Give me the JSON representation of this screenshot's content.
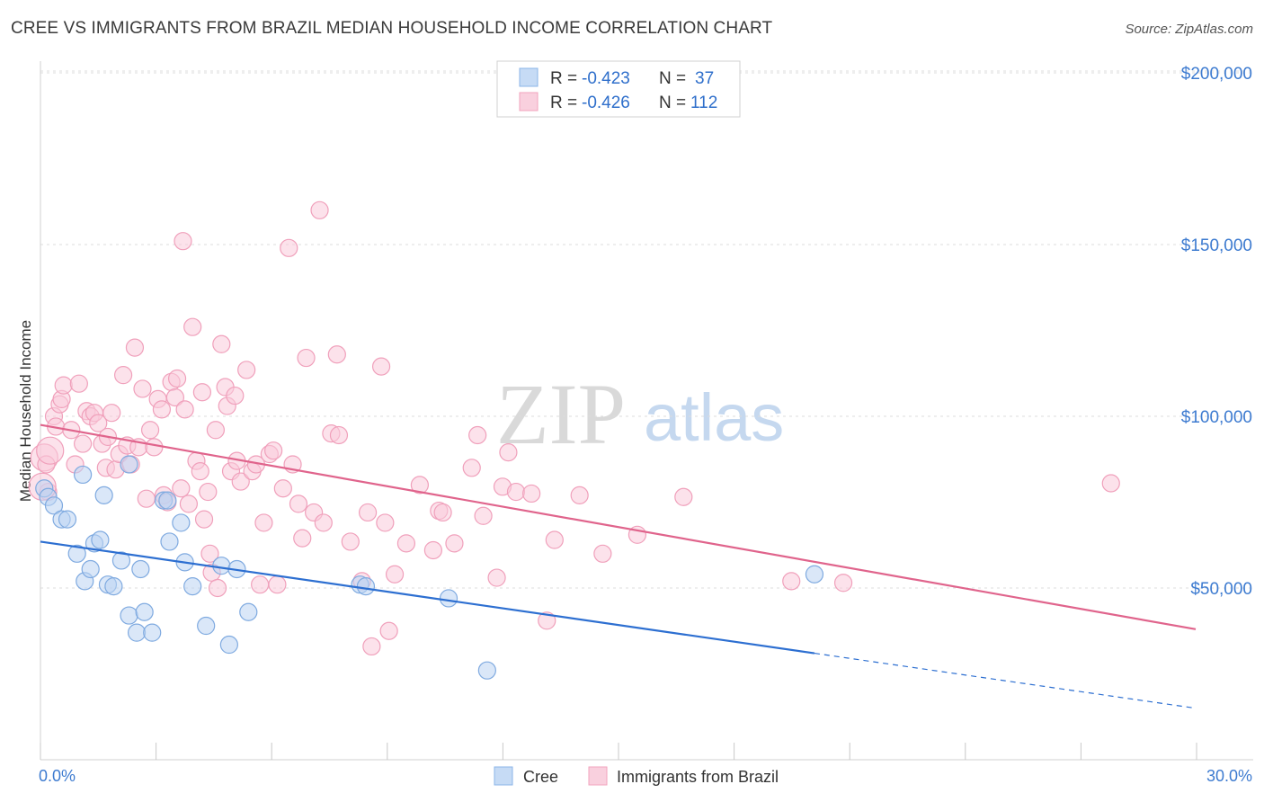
{
  "title": "CREE VS IMMIGRANTS FROM BRAZIL MEDIAN HOUSEHOLD INCOME CORRELATION CHART",
  "source": "Source: ZipAtlas.com",
  "watermark": {
    "zip": "ZIP",
    "atlas": "atlas"
  },
  "colors": {
    "cree": "#8bb5e8",
    "cree_line": "#2d6fd1",
    "brazil": "#f2a3bd",
    "brazil_line": "#e0648c",
    "axis_text": "#3d7bd0",
    "grid": "#dcdcdc"
  },
  "legend": {
    "rows": [
      {
        "r_label": "R =",
        "r_value": "-0.423",
        "n_label": "N =",
        "n_value": "37"
      },
      {
        "r_label": "R =",
        "r_value": "-0.426",
        "n_label": "N =",
        "n_value": "112"
      }
    ]
  },
  "bottom_legend": {
    "cree": "Cree",
    "brazil": "Immigrants from Brazil"
  },
  "chart_data": {
    "type": "scatter",
    "ylabel": "Median Household Income",
    "xlim": [
      0,
      30
    ],
    "ylim": [
      0,
      210000
    ],
    "x_tick_labels": {
      "left": "0.0%",
      "right": "30.0%"
    },
    "y_ticks": [
      {
        "value": 50000,
        "label": "$50,000"
      },
      {
        "value": 100000,
        "label": "$100,000"
      },
      {
        "value": 150000,
        "label": "$150,000"
      },
      {
        "value": 200000,
        "label": "$200,000"
      }
    ],
    "series": [
      {
        "name": "Cree",
        "trend": {
          "x0": 0,
          "y0": 63500,
          "x1": 20.1,
          "y1": 31000,
          "x_dash_end": 30,
          "y_dash_end": 15000
        },
        "points": [
          [
            0.1,
            79000
          ],
          [
            0.2,
            76500
          ],
          [
            0.35,
            74000
          ],
          [
            0.55,
            70000
          ],
          [
            0.7,
            70000
          ],
          [
            0.95,
            60000
          ],
          [
            1.1,
            83000
          ],
          [
            1.15,
            52000
          ],
          [
            1.3,
            55500
          ],
          [
            1.4,
            63000
          ],
          [
            1.55,
            64000
          ],
          [
            1.65,
            77000
          ],
          [
            1.75,
            51000
          ],
          [
            1.9,
            50500
          ],
          [
            2.1,
            58000
          ],
          [
            2.3,
            42000
          ],
          [
            2.5,
            37000
          ],
          [
            2.6,
            55500
          ],
          [
            2.7,
            43000
          ],
          [
            2.9,
            37000
          ],
          [
            3.2,
            75500
          ],
          [
            3.3,
            75500
          ],
          [
            3.35,
            63500
          ],
          [
            3.65,
            69000
          ],
          [
            3.75,
            57500
          ],
          [
            3.95,
            50500
          ],
          [
            4.3,
            39000
          ],
          [
            4.7,
            56500
          ],
          [
            4.9,
            33500
          ],
          [
            5.1,
            55500
          ],
          [
            5.4,
            43000
          ],
          [
            8.3,
            51000
          ],
          [
            8.45,
            50500
          ],
          [
            10.6,
            47000
          ],
          [
            11.6,
            26000
          ],
          [
            20.1,
            54000
          ],
          [
            2.3,
            86000
          ]
        ]
      },
      {
        "name": "Immigrants from Brazil",
        "trend": {
          "x0": 0,
          "y0": 97500,
          "x1": 30,
          "y1": 38000
        },
        "points": [
          [
            0.1,
            88000
          ],
          [
            0.15,
            86000
          ],
          [
            0.2,
            78000
          ],
          [
            0.35,
            100000
          ],
          [
            0.4,
            97000
          ],
          [
            0.5,
            103500
          ],
          [
            0.55,
            105000
          ],
          [
            0.6,
            109000
          ],
          [
            0.8,
            96000
          ],
          [
            0.9,
            86000
          ],
          [
            1.0,
            109500
          ],
          [
            1.1,
            92000
          ],
          [
            1.2,
            101500
          ],
          [
            1.3,
            100000
          ],
          [
            1.4,
            101000
          ],
          [
            1.5,
            98000
          ],
          [
            1.6,
            92000
          ],
          [
            1.7,
            85000
          ],
          [
            1.75,
            94000
          ],
          [
            1.85,
            101000
          ],
          [
            1.95,
            84500
          ],
          [
            2.05,
            89000
          ],
          [
            2.15,
            112000
          ],
          [
            2.25,
            91500
          ],
          [
            2.35,
            86000
          ],
          [
            2.45,
            120000
          ],
          [
            2.55,
            91000
          ],
          [
            2.65,
            108000
          ],
          [
            2.75,
            76000
          ],
          [
            2.85,
            96000
          ],
          [
            2.95,
            91000
          ],
          [
            3.05,
            105000
          ],
          [
            3.15,
            102000
          ],
          [
            3.2,
            77000
          ],
          [
            3.3,
            75000
          ],
          [
            3.4,
            110000
          ],
          [
            3.5,
            105500
          ],
          [
            3.55,
            111000
          ],
          [
            3.65,
            79000
          ],
          [
            3.7,
            151000
          ],
          [
            3.75,
            102000
          ],
          [
            3.85,
            74500
          ],
          [
            3.95,
            126000
          ],
          [
            4.05,
            87000
          ],
          [
            4.15,
            84000
          ],
          [
            4.2,
            107000
          ],
          [
            4.25,
            70000
          ],
          [
            4.35,
            78000
          ],
          [
            4.4,
            60000
          ],
          [
            4.45,
            54500
          ],
          [
            4.55,
            96000
          ],
          [
            4.6,
            50000
          ],
          [
            4.7,
            121000
          ],
          [
            4.8,
            108500
          ],
          [
            4.85,
            103000
          ],
          [
            4.95,
            84000
          ],
          [
            5.05,
            106000
          ],
          [
            5.1,
            87000
          ],
          [
            5.2,
            81000
          ],
          [
            5.35,
            113500
          ],
          [
            5.5,
            84000
          ],
          [
            5.6,
            86000
          ],
          [
            5.7,
            51000
          ],
          [
            5.8,
            69000
          ],
          [
            5.95,
            89000
          ],
          [
            6.05,
            90000
          ],
          [
            6.15,
            51000
          ],
          [
            6.3,
            79000
          ],
          [
            6.45,
            149000
          ],
          [
            6.55,
            86000
          ],
          [
            6.7,
            74500
          ],
          [
            6.8,
            64500
          ],
          [
            6.9,
            117000
          ],
          [
            7.1,
            72000
          ],
          [
            7.25,
            160000
          ],
          [
            7.35,
            69000
          ],
          [
            7.55,
            95000
          ],
          [
            7.75,
            94500
          ],
          [
            7.7,
            118000
          ],
          [
            8.05,
            63500
          ],
          [
            8.35,
            52000
          ],
          [
            8.5,
            72000
          ],
          [
            8.6,
            33000
          ],
          [
            8.85,
            114500
          ],
          [
            8.95,
            69000
          ],
          [
            9.05,
            37500
          ],
          [
            9.2,
            54000
          ],
          [
            9.5,
            63000
          ],
          [
            9.85,
            80000
          ],
          [
            10.2,
            61000
          ],
          [
            10.35,
            72500
          ],
          [
            10.45,
            72000
          ],
          [
            10.75,
            63000
          ],
          [
            11.2,
            85000
          ],
          [
            11.35,
            94500
          ],
          [
            11.5,
            71000
          ],
          [
            11.85,
            53000
          ],
          [
            12.0,
            79500
          ],
          [
            12.15,
            89500
          ],
          [
            12.35,
            78000
          ],
          [
            12.75,
            77500
          ],
          [
            13.15,
            40500
          ],
          [
            13.35,
            64000
          ],
          [
            14.0,
            77000
          ],
          [
            14.6,
            60000
          ],
          [
            15.5,
            65500
          ],
          [
            16.7,
            76500
          ],
          [
            19.5,
            52000
          ],
          [
            20.85,
            51500
          ],
          [
            27.8,
            80500
          ],
          [
            0.05,
            79500
          ],
          [
            0.25,
            90000
          ]
        ]
      }
    ]
  }
}
